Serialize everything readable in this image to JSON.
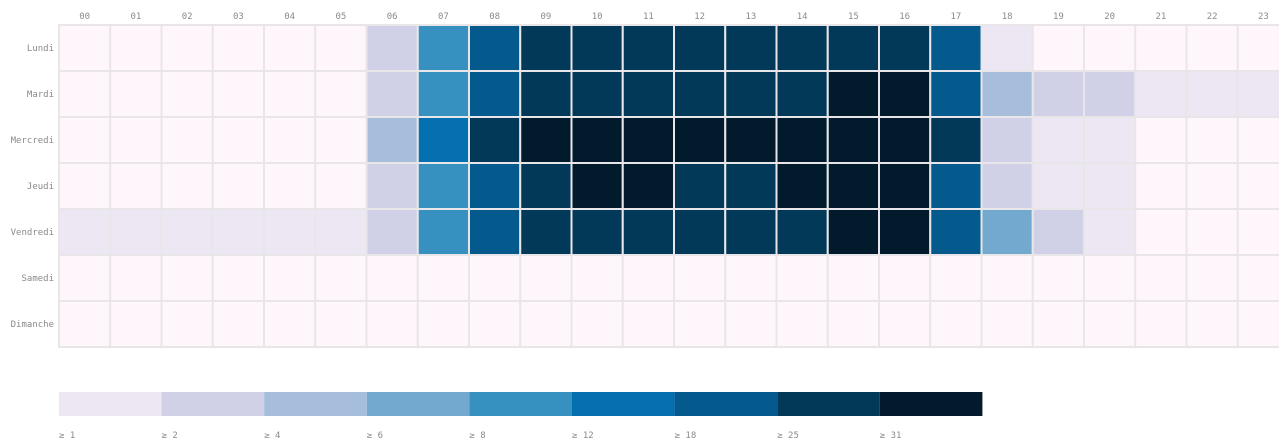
{
  "chart_data": {
    "type": "heatmap",
    "x_categories": [
      "00",
      "01",
      "02",
      "03",
      "04",
      "05",
      "06",
      "07",
      "08",
      "09",
      "10",
      "11",
      "12",
      "13",
      "14",
      "15",
      "16",
      "17",
      "18",
      "19",
      "20",
      "21",
      "22",
      "23"
    ],
    "y_categories": [
      "Lundi",
      "Mardi",
      "Mercredi",
      "Jeudi",
      "Vendredi",
      "Samedi",
      "Dimanche"
    ],
    "values": [
      [
        0,
        0,
        0,
        0,
        0,
        0,
        2,
        8,
        18,
        25,
        25,
        25,
        25,
        25,
        25,
        25,
        25,
        18,
        1,
        0,
        0,
        0,
        0,
        0
      ],
      [
        0,
        0,
        0,
        0,
        0,
        0,
        2,
        8,
        18,
        25,
        25,
        25,
        25,
        25,
        25,
        31,
        31,
        18,
        4,
        2,
        2,
        1,
        1,
        1
      ],
      [
        0,
        0,
        0,
        0,
        0,
        0,
        4,
        12,
        25,
        31,
        31,
        31,
        31,
        31,
        31,
        31,
        31,
        25,
        2,
        1,
        1,
        0,
        0,
        0
      ],
      [
        0,
        0,
        0,
        0,
        0,
        0,
        2,
        8,
        18,
        25,
        31,
        31,
        25,
        25,
        31,
        31,
        31,
        18,
        2,
        1,
        1,
        0,
        0,
        0
      ],
      [
        1,
        1,
        1,
        1,
        1,
        1,
        2,
        8,
        18,
        25,
        25,
        25,
        25,
        25,
        25,
        31,
        31,
        18,
        6,
        2,
        1,
        0,
        0,
        0
      ],
      [
        0,
        0,
        0,
        0,
        0,
        0,
        0,
        0,
        0,
        0,
        0,
        0,
        0,
        0,
        0,
        0,
        0,
        0,
        0,
        0,
        0,
        0,
        0,
        0
      ],
      [
        0,
        0,
        0,
        0,
        0,
        0,
        0,
        0,
        0,
        0,
        0,
        0,
        0,
        0,
        0,
        0,
        0,
        0,
        0,
        0,
        0,
        0,
        0,
        0
      ]
    ],
    "empty_color": "#fff6fb",
    "legend": {
      "thresholds": [
        1,
        2,
        4,
        6,
        8,
        12,
        18,
        25,
        31
      ],
      "labels": [
        "≥ 1",
        "≥ 2",
        "≥ 4",
        "≥ 6",
        "≥ 8",
        "≥ 12",
        "≥ 18",
        "≥ 25",
        "≥ 31"
      ],
      "colors": [
        "#ece7f2",
        "#d0d1e6",
        "#a6bddb",
        "#74a9cf",
        "#3690c0",
        "#0570b0",
        "#045a8d",
        "#023858",
        "#011a2c"
      ]
    }
  }
}
